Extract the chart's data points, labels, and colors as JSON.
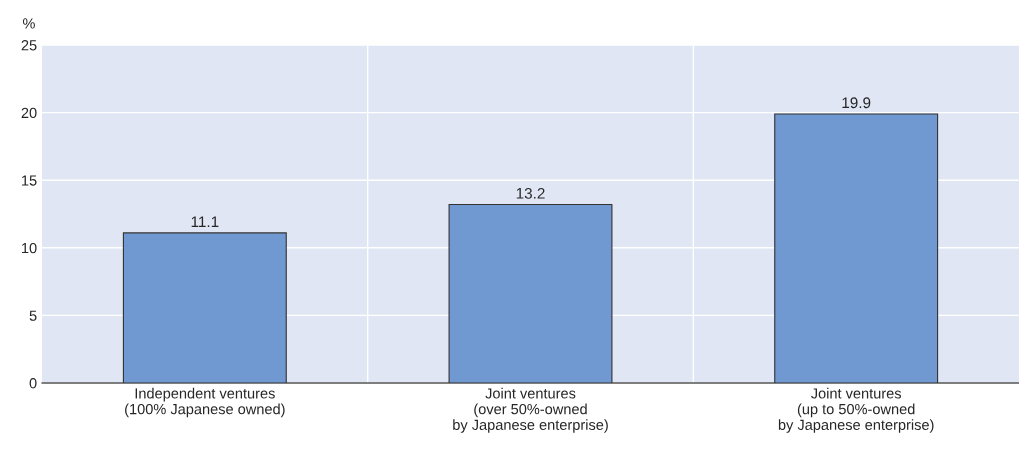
{
  "chart_data": {
    "type": "bar",
    "ylabel": "%",
    "categories": [
      "Independent ventures\n(100% Japanese owned)",
      "Joint ventures\n(over 50%-owned\nby Japanese enterprise)",
      "Joint ventures\n(up to 50%-owned\nby Japanese enterprise)"
    ],
    "values": [
      11.1,
      13.2,
      19.9
    ],
    "color": "#7199d1",
    "ylim": [
      0,
      25
    ],
    "yticks": [
      0,
      5,
      10,
      15,
      20,
      25
    ],
    "grid": true,
    "data_labels": true
  }
}
